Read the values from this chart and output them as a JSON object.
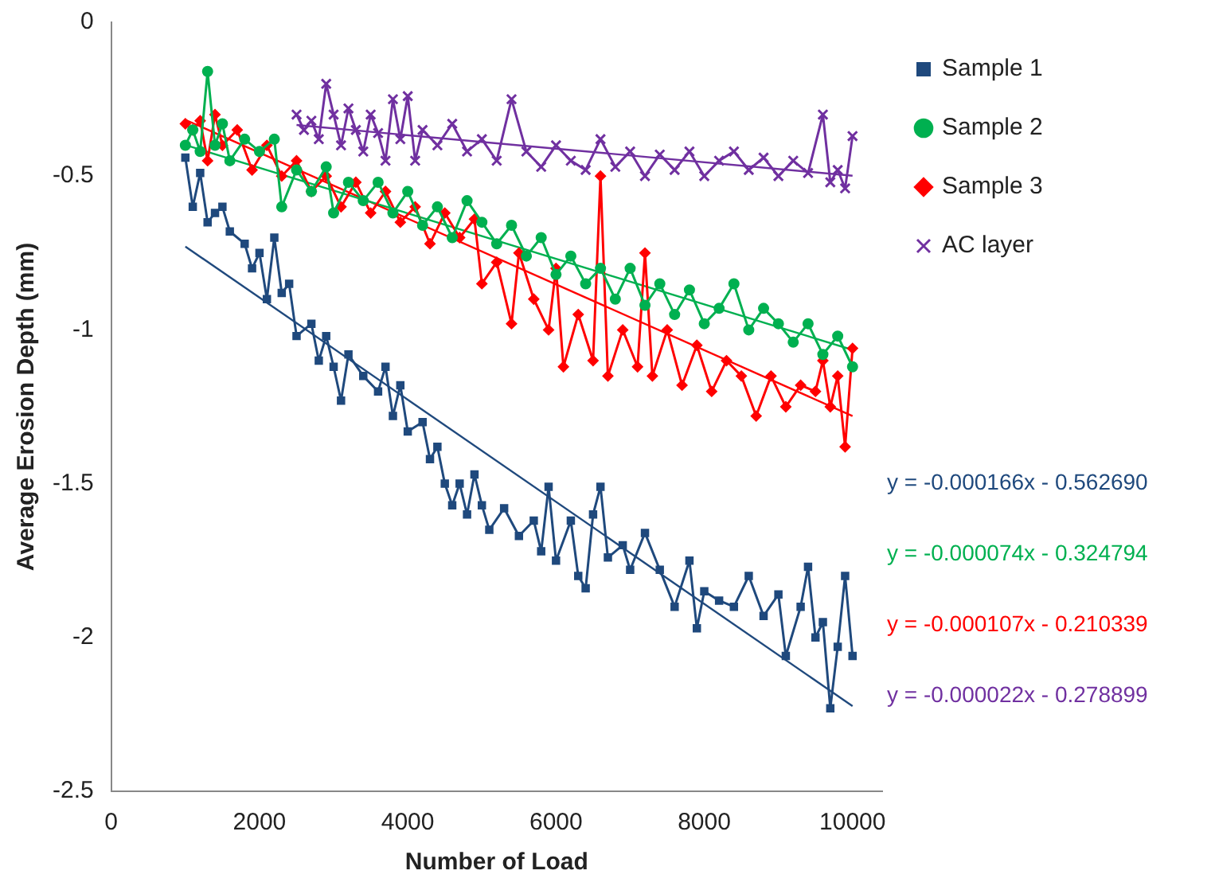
{
  "chart_data": {
    "type": "line",
    "xlabel": "Number of Load",
    "ylabel": "Average Erosion Depth (mm)",
    "xlim": [
      0,
      10400
    ],
    "xticks": [
      0,
      2000,
      4000,
      6000,
      8000,
      10000
    ],
    "ylim": [
      -2.5,
      0
    ],
    "yticks": [
      -2.5,
      -2,
      -1.5,
      -1,
      -0.5,
      0
    ],
    "grid": false,
    "legend": "right",
    "line_style": "solid",
    "series": [
      {
        "name": "Sample 1",
        "color": "#1f497d",
        "marker": "square",
        "x": [
          1000,
          1100,
          1200,
          1300,
          1400,
          1500,
          1600,
          1800,
          1900,
          2000,
          2100,
          2200,
          2300,
          2400,
          2500,
          2700,
          2800,
          2900,
          3000,
          3100,
          3200,
          3400,
          3600,
          3700,
          3800,
          3900,
          4000,
          4200,
          4300,
          4400,
          4500,
          4600,
          4700,
          4800,
          4900,
          5000,
          5100,
          5300,
          5500,
          5700,
          5800,
          5900,
          6000,
          6200,
          6300,
          6400,
          6500,
          6600,
          6700,
          6900,
          7000,
          7200,
          7400,
          7600,
          7800,
          7900,
          8000,
          8200,
          8400,
          8600,
          8800,
          9000,
          9100,
          9300,
          9400,
          9500,
          9600,
          9700,
          9800,
          9900,
          10000
        ],
        "values": [
          -0.44,
          -0.6,
          -0.49,
          -0.65,
          -0.62,
          -0.6,
          -0.68,
          -0.72,
          -0.8,
          -0.75,
          -0.9,
          -0.7,
          -0.88,
          -0.85,
          -1.02,
          -0.98,
          -1.1,
          -1.02,
          -1.12,
          -1.23,
          -1.08,
          -1.15,
          -1.2,
          -1.12,
          -1.28,
          -1.18,
          -1.33,
          -1.3,
          -1.42,
          -1.38,
          -1.5,
          -1.57,
          -1.5,
          -1.6,
          -1.47,
          -1.57,
          -1.65,
          -1.58,
          -1.67,
          -1.62,
          -1.72,
          -1.51,
          -1.75,
          -1.62,
          -1.8,
          -1.84,
          -1.6,
          -1.51,
          -1.74,
          -1.7,
          -1.78,
          -1.66,
          -1.78,
          -1.9,
          -1.75,
          -1.97,
          -1.85,
          -1.88,
          -1.9,
          -1.8,
          -1.93,
          -1.86,
          -2.06,
          -1.9,
          -1.77,
          -2.0,
          -1.95,
          -2.23,
          -2.03,
          -1.8,
          -2.06
        ]
      },
      {
        "name": "Sample 2",
        "color": "#00b050",
        "marker": "circle",
        "x": [
          1000,
          1100,
          1200,
          1300,
          1400,
          1500,
          1600,
          1800,
          2000,
          2200,
          2300,
          2500,
          2700,
          2900,
          3000,
          3200,
          3400,
          3600,
          3800,
          4000,
          4200,
          4400,
          4600,
          4800,
          5000,
          5200,
          5400,
          5600,
          5800,
          6000,
          6200,
          6400,
          6600,
          6800,
          7000,
          7200,
          7400,
          7600,
          7800,
          8000,
          8200,
          8400,
          8600,
          8800,
          9000,
          9200,
          9400,
          9600,
          9800,
          10000
        ],
        "values": [
          -0.4,
          -0.35,
          -0.42,
          -0.16,
          -0.4,
          -0.33,
          -0.45,
          -0.38,
          -0.42,
          -0.38,
          -0.6,
          -0.48,
          -0.55,
          -0.47,
          -0.62,
          -0.52,
          -0.58,
          -0.52,
          -0.62,
          -0.55,
          -0.66,
          -0.6,
          -0.7,
          -0.58,
          -0.65,
          -0.72,
          -0.66,
          -0.76,
          -0.7,
          -0.82,
          -0.76,
          -0.85,
          -0.8,
          -0.9,
          -0.8,
          -0.92,
          -0.85,
          -0.95,
          -0.87,
          -0.98,
          -0.93,
          -0.85,
          -1.0,
          -0.93,
          -0.98,
          -1.04,
          -0.98,
          -1.08,
          -1.02,
          -1.12
        ]
      },
      {
        "name": "Sample 3",
        "color": "#ff0000",
        "marker": "diamond",
        "x": [
          1000,
          1100,
          1200,
          1300,
          1400,
          1500,
          1700,
          1900,
          2100,
          2300,
          2500,
          2700,
          2900,
          3100,
          3300,
          3500,
          3700,
          3900,
          4100,
          4300,
          4500,
          4700,
          4900,
          5000,
          5200,
          5400,
          5500,
          5700,
          5900,
          6000,
          6100,
          6300,
          6500,
          6600,
          6700,
          6900,
          7100,
          7200,
          7300,
          7500,
          7700,
          7900,
          8100,
          8300,
          8500,
          8700,
          8900,
          9100,
          9300,
          9500,
          9600,
          9700,
          9800,
          9900,
          10000
        ],
        "values": [
          -0.33,
          -0.35,
          -0.32,
          -0.45,
          -0.3,
          -0.4,
          -0.35,
          -0.48,
          -0.4,
          -0.5,
          -0.45,
          -0.55,
          -0.5,
          -0.6,
          -0.52,
          -0.62,
          -0.55,
          -0.65,
          -0.6,
          -0.72,
          -0.62,
          -0.7,
          -0.64,
          -0.85,
          -0.78,
          -0.98,
          -0.75,
          -0.9,
          -1.0,
          -0.8,
          -1.12,
          -0.95,
          -1.1,
          -0.5,
          -1.15,
          -1.0,
          -1.12,
          -0.75,
          -1.15,
          -1.0,
          -1.18,
          -1.05,
          -1.2,
          -1.1,
          -1.15,
          -1.28,
          -1.15,
          -1.25,
          -1.18,
          -1.2,
          -1.1,
          -1.25,
          -1.15,
          -1.38,
          -1.06
        ]
      },
      {
        "name": "AC layer",
        "color": "#7030a0",
        "marker": "cross",
        "x": [
          2500,
          2600,
          2700,
          2800,
          2900,
          3000,
          3100,
          3200,
          3300,
          3400,
          3500,
          3600,
          3700,
          3800,
          3900,
          4000,
          4100,
          4200,
          4400,
          4600,
          4800,
          5000,
          5200,
          5400,
          5600,
          5800,
          6000,
          6200,
          6400,
          6600,
          6800,
          7000,
          7200,
          7400,
          7600,
          7800,
          8000,
          8200,
          8400,
          8600,
          8800,
          9000,
          9200,
          9400,
          9600,
          9700,
          9800,
          9900,
          10000
        ],
        "values": [
          -0.3,
          -0.35,
          -0.32,
          -0.38,
          -0.2,
          -0.3,
          -0.4,
          -0.28,
          -0.35,
          -0.42,
          -0.3,
          -0.36,
          -0.45,
          -0.25,
          -0.38,
          -0.24,
          -0.45,
          -0.35,
          -0.4,
          -0.33,
          -0.42,
          -0.38,
          -0.45,
          -0.25,
          -0.42,
          -0.47,
          -0.4,
          -0.45,
          -0.48,
          -0.38,
          -0.47,
          -0.42,
          -0.5,
          -0.43,
          -0.48,
          -0.42,
          -0.5,
          -0.45,
          -0.42,
          -0.48,
          -0.44,
          -0.5,
          -0.45,
          -0.49,
          -0.3,
          -0.52,
          -0.48,
          -0.54,
          -0.37
        ]
      },
      {
        "type": "line",
        "color": "#1f497d",
        "marker": "none",
        "x": [
          1000,
          10000
        ],
        "values": [
          -0.729,
          -2.223
        ]
      },
      {
        "type": "line",
        "color": "#00b050",
        "marker": "none",
        "x": [
          1000,
          10000
        ],
        "values": [
          -0.399,
          -1.065
        ]
      },
      {
        "type": "line",
        "color": "#ff0000",
        "marker": "none",
        "x": [
          1000,
          10000
        ],
        "values": [
          -0.317,
          -1.28
        ]
      },
      {
        "type": "line",
        "color": "#7030a0",
        "marker": "none",
        "x": [
          2500,
          10000
        ],
        "values": [
          -0.334,
          -0.499
        ]
      }
    ],
    "annotations": [
      "y = -0.000166x - 0.562690",
      "y = -0.000074x - 0.324794",
      "y = -0.000107x - 0.210339",
      "y = -0.000022x - 0.278899"
    ]
  }
}
